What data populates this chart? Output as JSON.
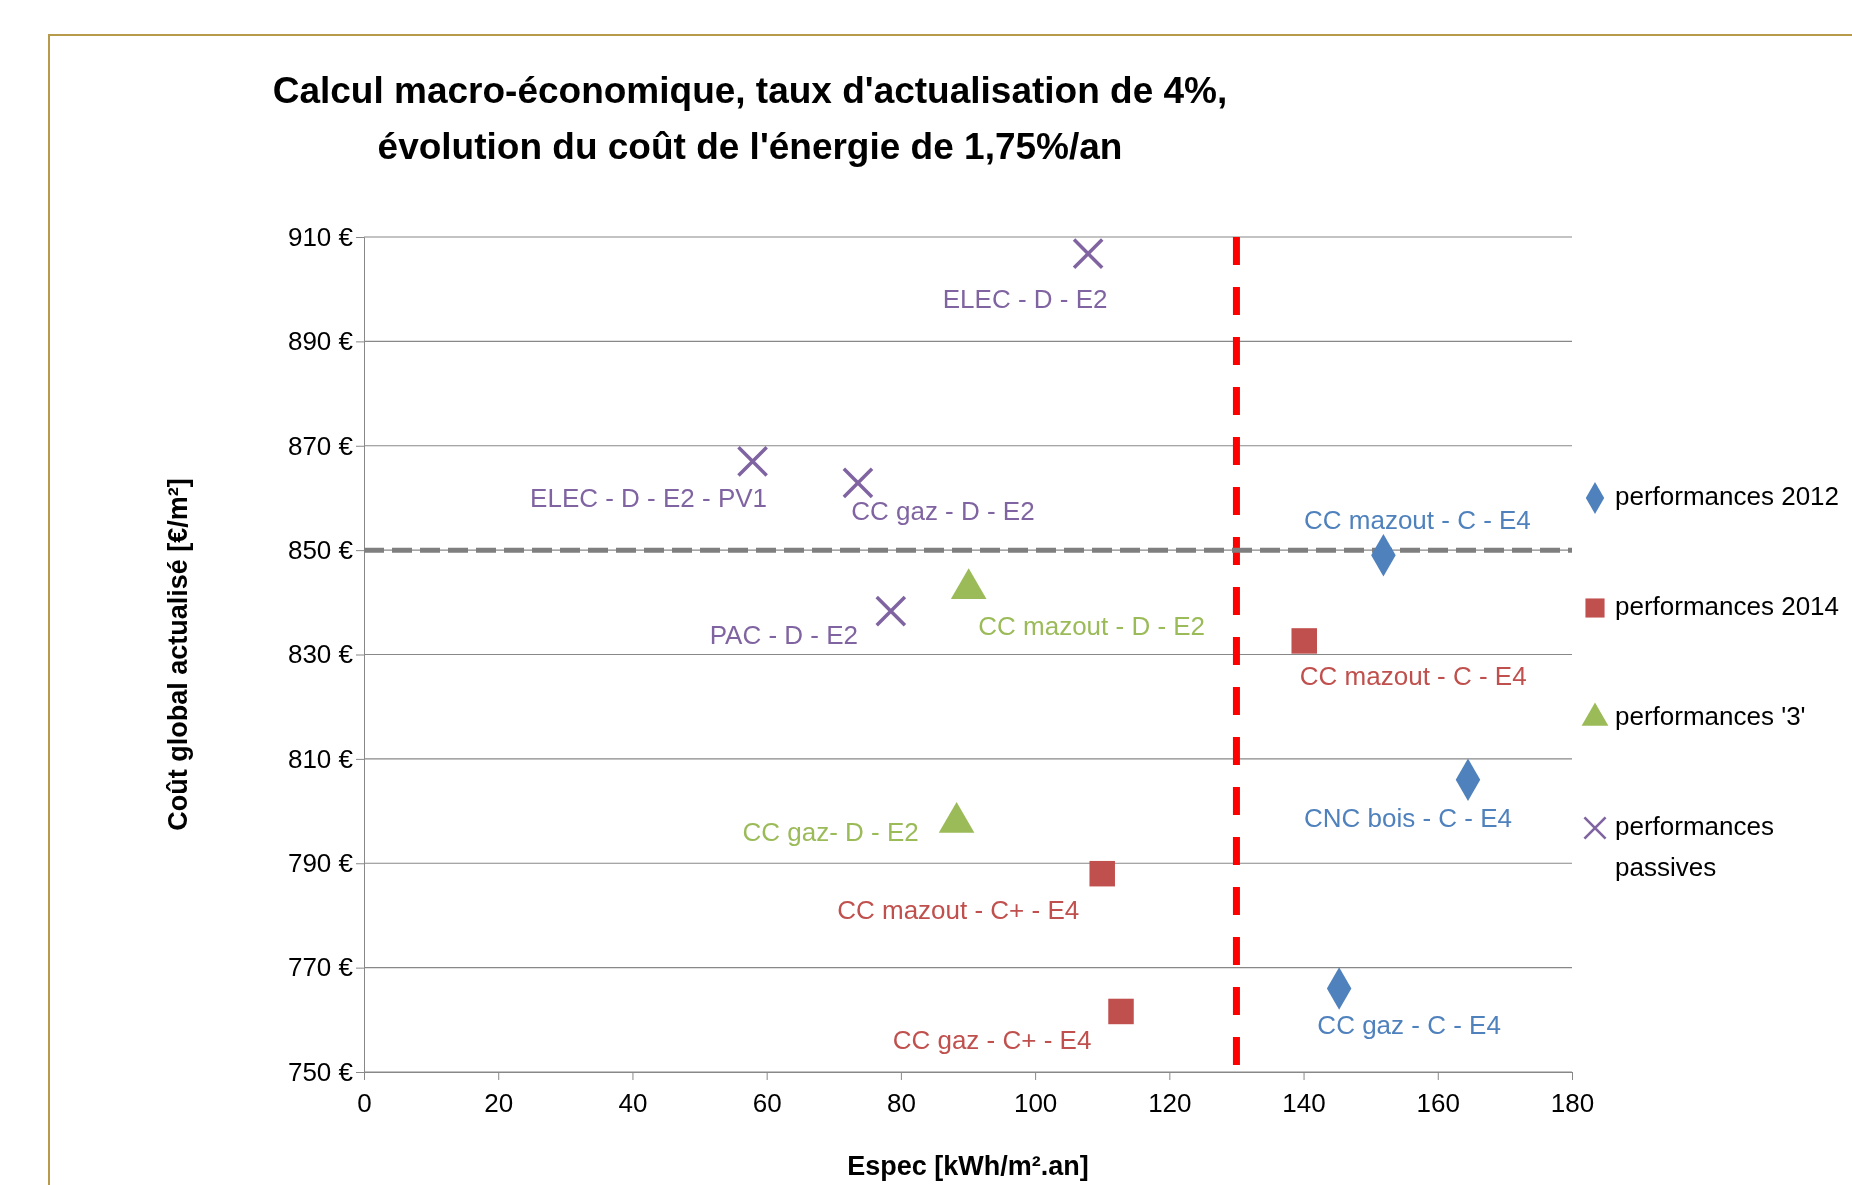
{
  "chart_data": {
    "type": "scatter",
    "title": "Calcul macro-économique, taux d'actualisation de 4%,\névolution du coût de l'énergie de 1,75%/an",
    "xlabel": "Espec [kWh/m².an]",
    "ylabel": "Coût global actualisé [€/m²]",
    "xlim": [
      0,
      180
    ],
    "xticks": [
      0,
      20,
      40,
      60,
      80,
      100,
      120,
      140,
      160,
      180
    ],
    "ylim": [
      750,
      910
    ],
    "yticks": [
      {
        "value": 750,
        "label": "750 €"
      },
      {
        "value": 770,
        "label": "770 €"
      },
      {
        "value": 790,
        "label": "790 €"
      },
      {
        "value": 810,
        "label": "810 €"
      },
      {
        "value": 830,
        "label": "830 €"
      },
      {
        "value": 850,
        "label": "850 €"
      },
      {
        "value": 870,
        "label": "870 €"
      },
      {
        "value": 890,
        "label": "890 €"
      },
      {
        "value": 910,
        "label": "910 €"
      }
    ],
    "grid": "y",
    "legend": "right",
    "ref_lines": [
      {
        "axis": "x",
        "value": 130,
        "color": "#ff0000",
        "line_style": "dashed"
      },
      {
        "axis": "y",
        "value": 850,
        "color": "#7f7f7f",
        "line_style": "dashed"
      }
    ],
    "series": [
      {
        "name": "performances 2012",
        "color": "#4f81bd",
        "marker": "diamond",
        "x": [
          151.9,
          164.5,
          145.3
        ],
        "values": [
          849,
          806,
          766
        ],
        "value_labels": [
          "CC mazout - C - E4",
          "CNC bois - C - E4",
          "CC gaz - C - E4"
        ]
      },
      {
        "name": "performances 2014",
        "color": "#c0504d",
        "marker": "square",
        "x": [
          140.1,
          110,
          112.8
        ],
        "values": [
          832.6,
          788,
          761.6
        ],
        "value_labels": [
          "CC mazout - C - E4",
          "CC mazout - C+ - E4",
          "CC gaz - C+ - E4"
        ]
      },
      {
        "name": "performances '3'",
        "color": "#9bbb59",
        "marker": "triangle",
        "x": [
          90.1,
          88.3
        ],
        "values": [
          842.6,
          797.8
        ],
        "value_labels": [
          "CC mazout - D - E2",
          "CC gaz- D - E2"
        ]
      },
      {
        "name": "performances passives",
        "color": "#8064a2",
        "marker": "cross",
        "x": [
          107.9,
          57.9,
          73.6,
          78.5
        ],
        "values": [
          906.8,
          867,
          862.9,
          838.3
        ],
        "value_labels": [
          "ELEC - D - E2",
          "ELEC - D - E2 - PV1",
          "CC gaz - D - E2",
          "PAC - D - E2"
        ]
      }
    ]
  }
}
